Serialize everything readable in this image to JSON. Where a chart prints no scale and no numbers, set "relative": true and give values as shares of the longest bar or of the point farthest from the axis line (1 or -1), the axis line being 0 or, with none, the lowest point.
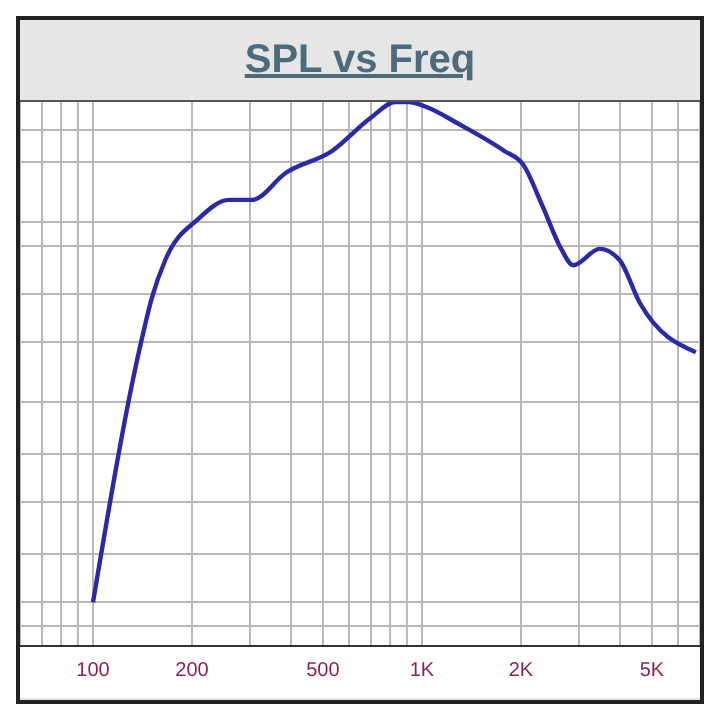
{
  "chart_data": {
    "type": "line",
    "title": "SPL vs Freq",
    "relative": true,
    "log": "x",
    "grid": true,
    "legend": false,
    "marker": "none",
    "line_style": "solid",
    "xlim": [
      60,
      7000
    ],
    "xticks": [
      {
        "value": 60,
        "label": null
      },
      {
        "value": 70,
        "label": null
      },
      {
        "value": 80,
        "label": null
      },
      {
        "value": 90,
        "label": null
      },
      100,
      200,
      {
        "value": 300,
        "label": null
      },
      {
        "value": 400,
        "label": null
      },
      500,
      {
        "value": 600,
        "label": null
      },
      {
        "value": 700,
        "label": null
      },
      {
        "value": 800,
        "label": null
      },
      {
        "value": 900,
        "label": null
      },
      {
        "value": 1000,
        "label": "1K"
      },
      {
        "value": 2000,
        "label": "2K"
      },
      {
        "value": 3000,
        "label": null
      },
      {
        "value": 4000,
        "label": null
      },
      {
        "value": 5000,
        "label": "5K"
      },
      {
        "value": 6000,
        "label": null
      },
      {
        "value": 7000,
        "label": null
      }
    ],
    "x": [
      100,
      139,
      151,
      166,
      209,
      259,
      304,
      386,
      533,
      696,
      830,
      909,
      1040,
      1290,
      1780,
      2030,
      2320,
      2650,
      2880,
      3470,
      3980,
      4600,
      6800
    ],
    "series": [
      {
        "color": "#2a2aa8",
        "values": [
          0.08,
          0.55,
          0.64,
          0.71,
          0.785,
          0.82,
          0.82,
          0.87,
          0.91,
          0.97,
          1.0,
          1.0,
          0.99,
          0.96,
          0.91,
          0.885,
          0.81,
          0.73,
          0.7,
          0.73,
          0.71,
          0.63,
          0.54
        ]
      }
    ]
  }
}
